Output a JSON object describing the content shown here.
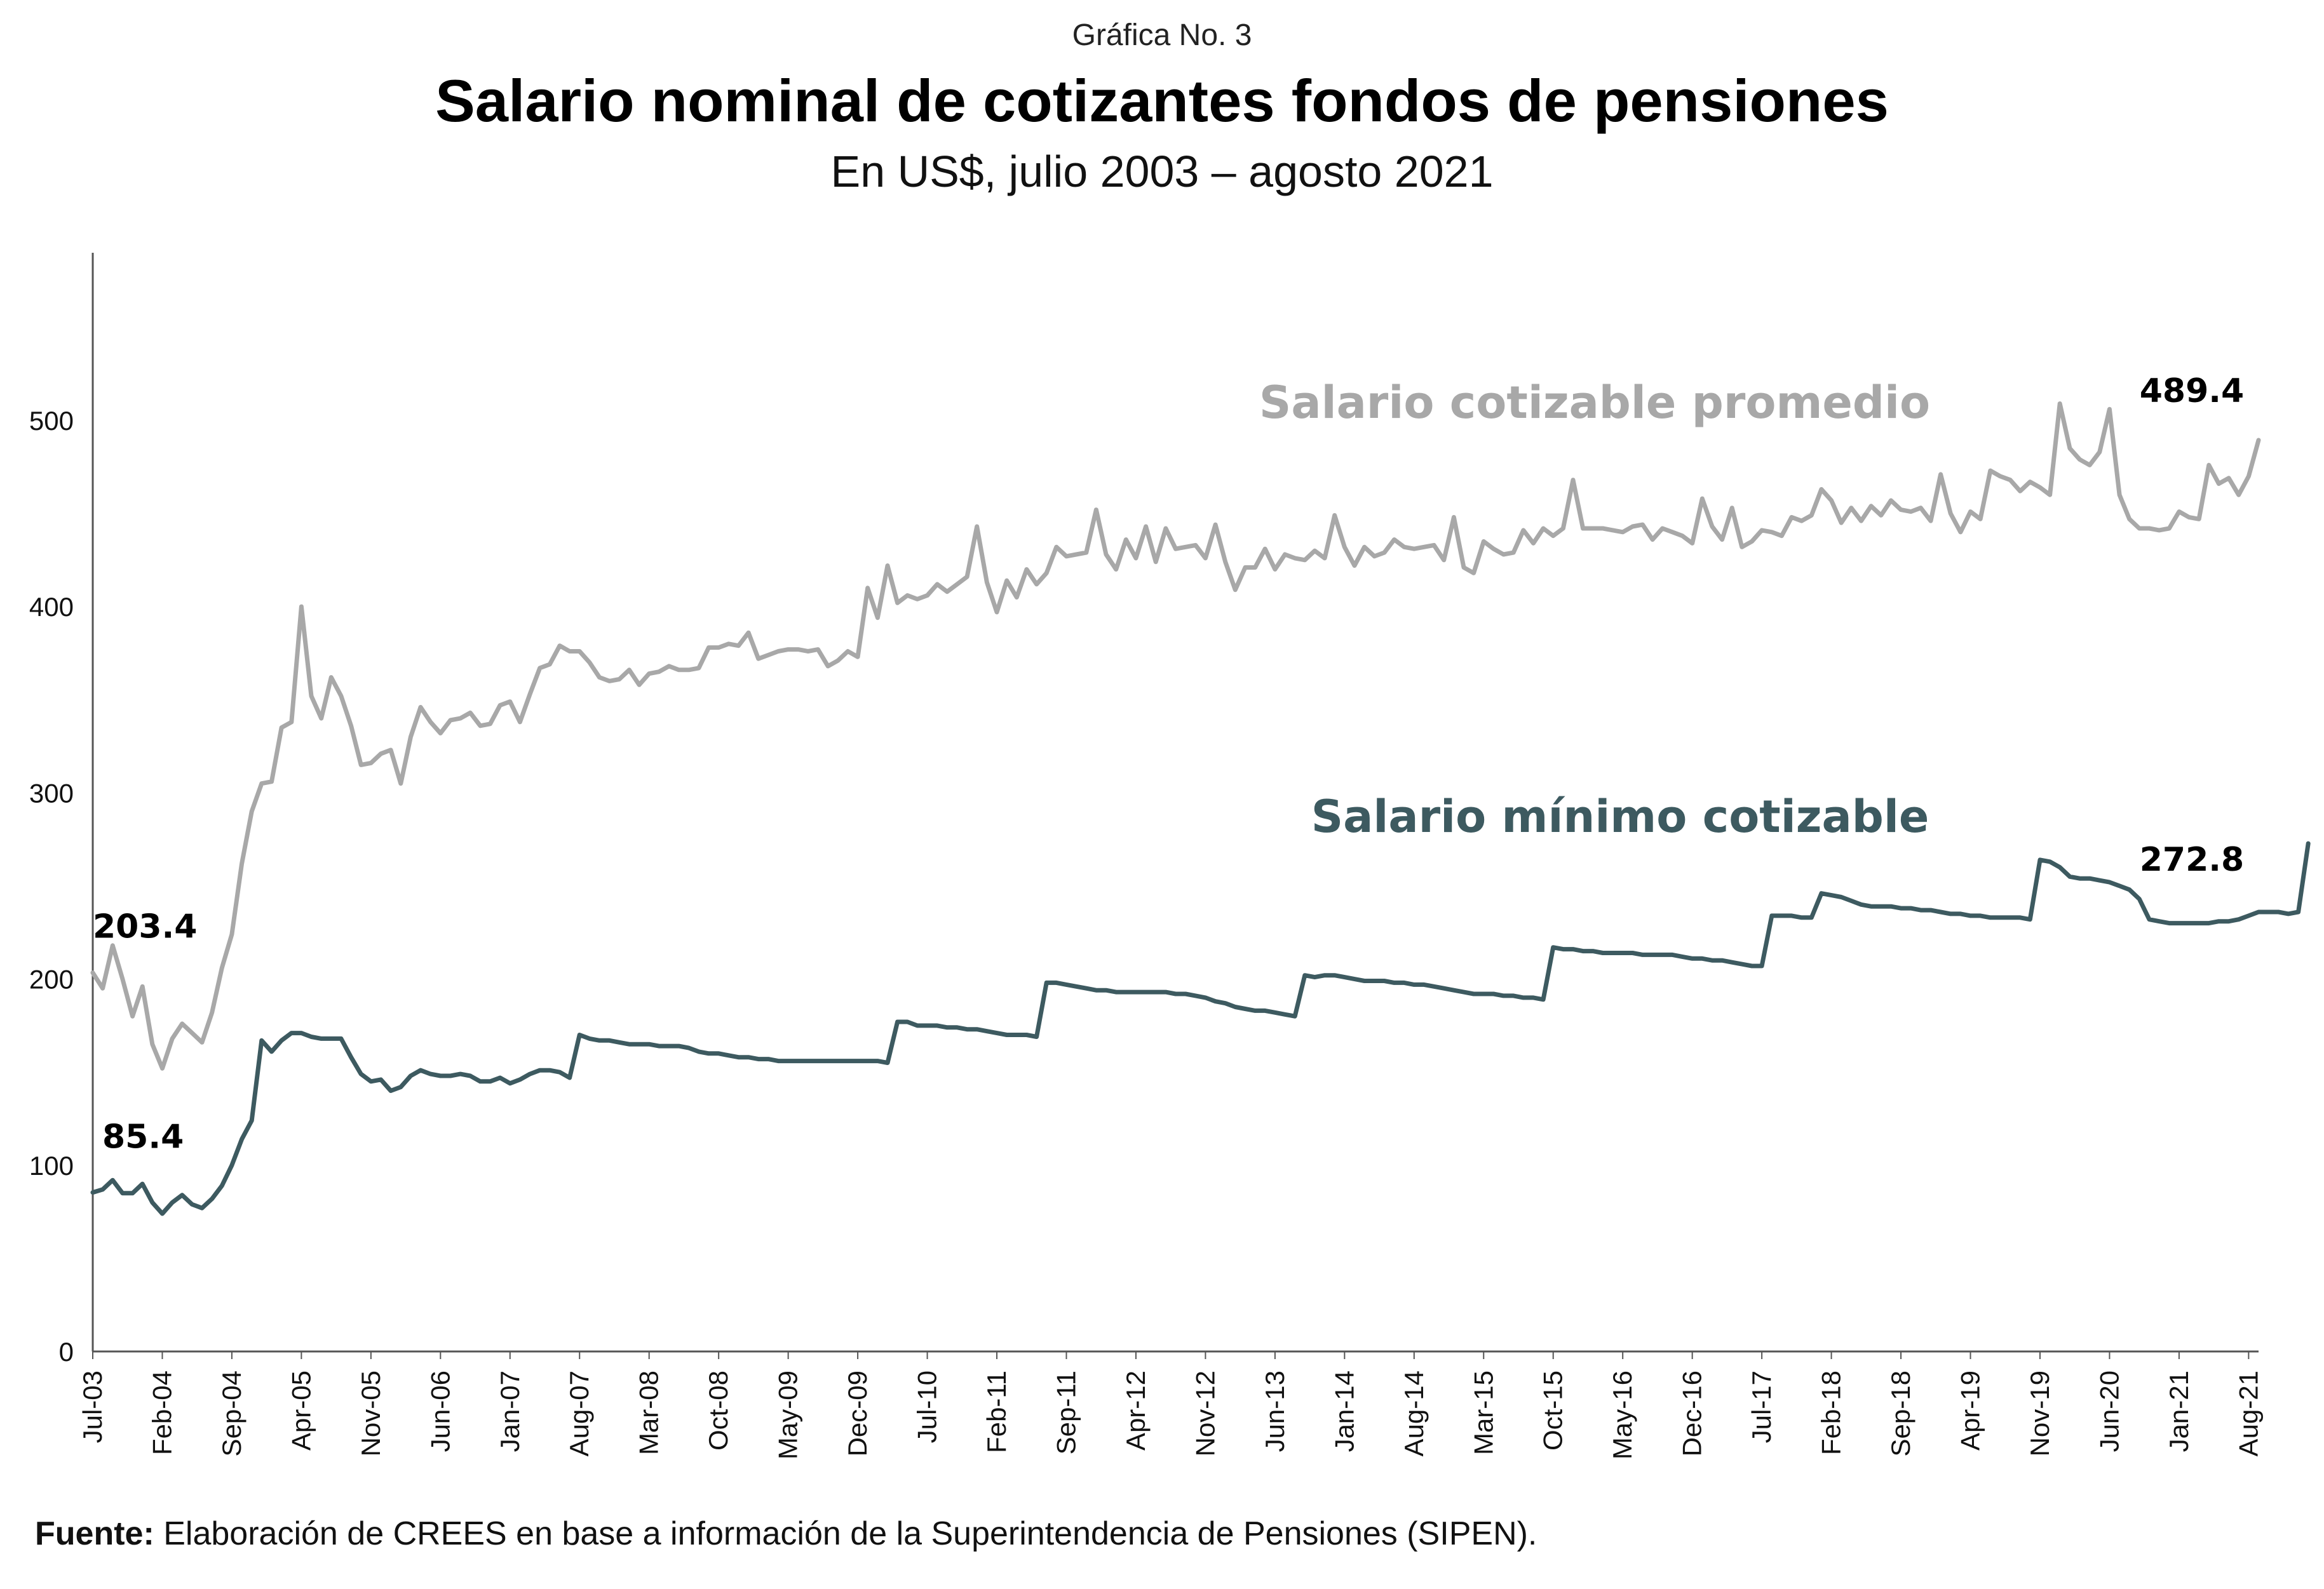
{
  "kicker": "Gráfica No. 3",
  "title": "Salario nominal de cotizantes fondos de pensiones",
  "subtitle": "En US$, julio 2003 – agosto 2021",
  "source_label": "Fuente:",
  "source_text": "Elaboración de CREES en base a información de la Superintendencia de Pensiones (SIPEN).",
  "chart_data": {
    "type": "line",
    "title": "Salario nominal de cotizantes fondos de pensiones",
    "subtitle": "En US$, julio 2003 – agosto 2021",
    "xlabel": "",
    "ylabel": "",
    "ylim": [
      0,
      590
    ],
    "grid": false,
    "yticks": [
      0,
      100,
      200,
      300,
      400,
      500
    ],
    "start": "Jul-03",
    "xticks": [
      "Jul-03",
      "Feb-04",
      "Sep-04",
      "Apr-05",
      "Nov-05",
      "Jun-06",
      "Jan-07",
      "Aug-07",
      "Mar-08",
      "Oct-08",
      "May-09",
      "Dec-09",
      "Jul-10",
      "Feb-11",
      "Sep-11",
      "Apr-12",
      "Nov-12",
      "Jun-13",
      "Jan-14",
      "Aug-14",
      "Mar-15",
      "Oct-15",
      "May-16",
      "Dec-16",
      "Jul-17",
      "Feb-18",
      "Sep-18",
      "Apr-19",
      "Nov-19",
      "Jun-20",
      "Jan-21",
      "Aug-21"
    ],
    "series": [
      {
        "name": "Salario cotizable promedio",
        "color": "#a8a8a8",
        "start_label": "203.4",
        "end_label": "489.4",
        "values": [
          203.4,
          195,
          218,
          200,
          180,
          196,
          165,
          152,
          168,
          176,
          171,
          166,
          182,
          206,
          224,
          262,
          290,
          305,
          306,
          335,
          338,
          400,
          352,
          340,
          362,
          352,
          336,
          315,
          316,
          321,
          323,
          305,
          330,
          346,
          338,
          332,
          339,
          340,
          343,
          336,
          337,
          347,
          349,
          338,
          353,
          367,
          369,
          379,
          376,
          376,
          370,
          362,
          360,
          361,
          366,
          358,
          364,
          365,
          368,
          366,
          366,
          367,
          378,
          378,
          380,
          379,
          386,
          372,
          374,
          376,
          377,
          377,
          376,
          377,
          368,
          371,
          376,
          373,
          410,
          394,
          422,
          402,
          406,
          404,
          406,
          412,
          408,
          412,
          416,
          443,
          413,
          397,
          414,
          405,
          420,
          412,
          418,
          432,
          427,
          428,
          429,
          452,
          428,
          420,
          436,
          426,
          443,
          424,
          442,
          431,
          432,
          433,
          426,
          444,
          424,
          409,
          421,
          421,
          431,
          420,
          428,
          426,
          425,
          430,
          426,
          449,
          432,
          422,
          432,
          427,
          429,
          436,
          432,
          431,
          432,
          433,
          425,
          448,
          421,
          418,
          435,
          431,
          428,
          429,
          441,
          434,
          442,
          438,
          442,
          468,
          442,
          442,
          442,
          441,
          440,
          443,
          444,
          436,
          442,
          440,
          438,
          434,
          458,
          443,
          436,
          453,
          432,
          435,
          441,
          440,
          438,
          448,
          446,
          449,
          463,
          457,
          445,
          453,
          446,
          454,
          449,
          457,
          452,
          451,
          453,
          446,
          471,
          450,
          440,
          451,
          447,
          473,
          470,
          468,
          462,
          467,
          464,
          460,
          509,
          485,
          479,
          476,
          483,
          506,
          460,
          447,
          442,
          442,
          441,
          442,
          451,
          448,
          447,
          476,
          466,
          469,
          460,
          470,
          489.4
        ]
      },
      {
        "name": "Salario mínimo cotizable",
        "color": "#3d5a60",
        "start_label": "85.4",
        "end_label": "272.8",
        "values": [
          85.4,
          87,
          92,
          85,
          85,
          90,
          80,
          74,
          80,
          84,
          79,
          77,
          82,
          89,
          100,
          114,
          124,
          167,
          161,
          167,
          171,
          171,
          169,
          168,
          168,
          168,
          158,
          149,
          145,
          146,
          140,
          142,
          148,
          151,
          149,
          148,
          148,
          149,
          148,
          145,
          145,
          147,
          144,
          146,
          149,
          151,
          151,
          150,
          147,
          170,
          168,
          167,
          167,
          166,
          165,
          165,
          165,
          164,
          164,
          164,
          163,
          161,
          160,
          160,
          159,
          158,
          158,
          157,
          157,
          156,
          156,
          156,
          156,
          156,
          156,
          156,
          156,
          156,
          156,
          156,
          155,
          177,
          177,
          175,
          175,
          175,
          174,
          174,
          173,
          173,
          172,
          171,
          170,
          170,
          170,
          169,
          198,
          198,
          197,
          196,
          195,
          194,
          194,
          193,
          193,
          193,
          193,
          193,
          193,
          192,
          192,
          191,
          190,
          188,
          187,
          185,
          184,
          183,
          183,
          182,
          181,
          180,
          202,
          201,
          202,
          202,
          201,
          200,
          199,
          199,
          199,
          198,
          198,
          197,
          197,
          196,
          195,
          194,
          193,
          192,
          192,
          192,
          191,
          191,
          190,
          190,
          189,
          217,
          216,
          216,
          215,
          215,
          214,
          214,
          214,
          214,
          213,
          213,
          213,
          213,
          212,
          211,
          211,
          210,
          210,
          209,
          208,
          207,
          207,
          234,
          234,
          234,
          233,
          233,
          246,
          245,
          244,
          242,
          240,
          239,
          239,
          239,
          238,
          238,
          237,
          237,
          236,
          235,
          235,
          234,
          234,
          233,
          233,
          233,
          233,
          232,
          264,
          263,
          260,
          255,
          254,
          254,
          253,
          252,
          250,
          248,
          243,
          232,
          231,
          230,
          230,
          230,
          230,
          230,
          231,
          231,
          232,
          234,
          236,
          236,
          236,
          235,
          236,
          272.8
        ]
      }
    ]
  }
}
